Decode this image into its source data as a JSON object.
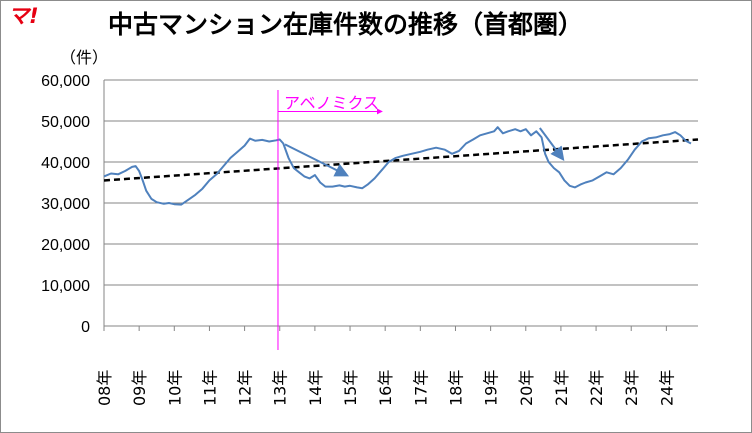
{
  "logo_text": "マ!",
  "chart_data": {
    "type": "line",
    "title": "中古マンション在庫件数の推移（首都圏）",
    "ylabel": "（件）",
    "xlabel": "",
    "ylim": [
      0,
      60000
    ],
    "yticks": [
      "0",
      "10,000",
      "20,000",
      "30,000",
      "40,000",
      "50,000",
      "60,000"
    ],
    "ytick_values": [
      0,
      10000,
      20000,
      30000,
      40000,
      50000,
      60000
    ],
    "categories": [
      "08年",
      "09年",
      "10年",
      "11年",
      "12年",
      "13年",
      "14年",
      "15年",
      "16年",
      "17年",
      "18年",
      "19年",
      "20年",
      "21年",
      "22年",
      "23年",
      "24年"
    ],
    "xlim": [
      2008,
      2024.9
    ],
    "grid": true,
    "series": [
      {
        "color": "#4f81bd",
        "points": [
          [
            2008.0,
            36500
          ],
          [
            2008.2,
            37200
          ],
          [
            2008.4,
            37000
          ],
          [
            2008.6,
            37800
          ],
          [
            2008.8,
            38800
          ],
          [
            2008.9,
            39000
          ],
          [
            2009.0,
            37800
          ],
          [
            2009.1,
            35500
          ],
          [
            2009.2,
            33000
          ],
          [
            2009.35,
            31000
          ],
          [
            2009.5,
            30200
          ],
          [
            2009.7,
            29800
          ],
          [
            2009.85,
            30000
          ],
          [
            2010.0,
            29700
          ],
          [
            2010.2,
            29600
          ],
          [
            2010.4,
            30800
          ],
          [
            2010.6,
            32000
          ],
          [
            2010.8,
            33500
          ],
          [
            2011.0,
            35500
          ],
          [
            2011.2,
            37000
          ],
          [
            2011.4,
            39000
          ],
          [
            2011.6,
            41000
          ],
          [
            2011.8,
            42500
          ],
          [
            2012.0,
            44000
          ],
          [
            2012.15,
            45700
          ],
          [
            2012.3,
            45200
          ],
          [
            2012.5,
            45400
          ],
          [
            2012.7,
            45000
          ],
          [
            2012.9,
            45300
          ],
          [
            2013.0,
            45500
          ],
          [
            2013.1,
            44500
          ],
          [
            2013.25,
            41000
          ],
          [
            2013.4,
            38500
          ],
          [
            2013.55,
            37500
          ],
          [
            2013.7,
            36500
          ],
          [
            2013.85,
            36000
          ],
          [
            2014.0,
            36800
          ],
          [
            2014.15,
            35000
          ],
          [
            2014.3,
            34000
          ],
          [
            2014.5,
            34000
          ],
          [
            2014.7,
            34300
          ],
          [
            2014.85,
            34000
          ],
          [
            2015.0,
            34200
          ],
          [
            2015.2,
            33800
          ],
          [
            2015.35,
            33600
          ],
          [
            2015.5,
            34500
          ],
          [
            2015.7,
            36000
          ],
          [
            2015.9,
            38000
          ],
          [
            2016.1,
            40000
          ],
          [
            2016.3,
            41000
          ],
          [
            2016.5,
            41500
          ],
          [
            2016.75,
            42000
          ],
          [
            2017.0,
            42500
          ],
          [
            2017.2,
            43000
          ],
          [
            2017.45,
            43500
          ],
          [
            2017.7,
            43000
          ],
          [
            2017.9,
            42000
          ],
          [
            2018.1,
            42700
          ],
          [
            2018.3,
            44500
          ],
          [
            2018.5,
            45500
          ],
          [
            2018.7,
            46500
          ],
          [
            2018.9,
            47000
          ],
          [
            2019.1,
            47500
          ],
          [
            2019.2,
            48500
          ],
          [
            2019.35,
            47000
          ],
          [
            2019.5,
            47500
          ],
          [
            2019.7,
            48000
          ],
          [
            2019.85,
            47500
          ],
          [
            2020.0,
            48000
          ],
          [
            2020.15,
            46500
          ],
          [
            2020.3,
            47500
          ],
          [
            2020.45,
            46000
          ],
          [
            2020.55,
            42000
          ],
          [
            2020.65,
            40000
          ],
          [
            2020.8,
            38500
          ],
          [
            2020.95,
            37500
          ],
          [
            2021.1,
            35500
          ],
          [
            2021.25,
            34200
          ],
          [
            2021.4,
            33800
          ],
          [
            2021.55,
            34500
          ],
          [
            2021.7,
            35000
          ],
          [
            2021.9,
            35500
          ],
          [
            2022.1,
            36500
          ],
          [
            2022.3,
            37500
          ],
          [
            2022.5,
            37000
          ],
          [
            2022.7,
            38500
          ],
          [
            2022.9,
            40500
          ],
          [
            2023.1,
            43000
          ],
          [
            2023.3,
            45000
          ],
          [
            2023.5,
            45800
          ],
          [
            2023.7,
            46000
          ],
          [
            2023.9,
            46500
          ],
          [
            2024.1,
            46800
          ],
          [
            2024.25,
            47300
          ],
          [
            2024.4,
            46500
          ],
          [
            2024.55,
            45200
          ],
          [
            2024.7,
            44500
          ]
        ]
      }
    ],
    "trendline": {
      "style": "dashed",
      "color": "#000000",
      "points": [
        [
          2008.0,
          35500
        ],
        [
          2024.9,
          45500
        ]
      ]
    },
    "annotations": {
      "abenomics_label": "アベノミクス",
      "marker_x": 2012.95,
      "arrow_start_x": 2012.95,
      "arrow_end_x": 2015.9,
      "arrow_y": 55500
    },
    "arrows": [
      {
        "from": [
          2013.15,
          44300
        ],
        "to": [
          2014.9,
          36800
        ]
      },
      {
        "from": [
          2020.4,
          48300
        ],
        "to": [
          2021.05,
          40800
        ]
      }
    ]
  }
}
